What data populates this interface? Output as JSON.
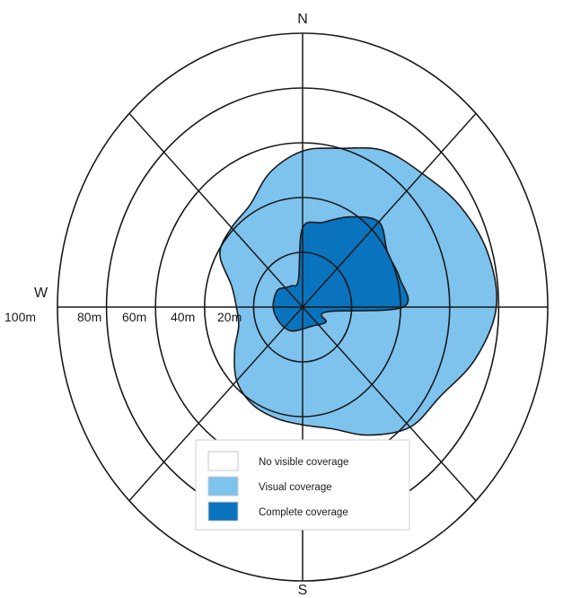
{
  "chart_data": {
    "type": "polar-area",
    "directions": {
      "north": "N",
      "west": "W",
      "south": "S",
      "east": ""
    },
    "radial_ticks": [
      "100m",
      "80m",
      "60m",
      "40m",
      "20m"
    ],
    "radial_tick_values": [
      100,
      80,
      60,
      40,
      20
    ],
    "radial_max": 100,
    "rings": [
      20,
      40,
      60,
      80,
      100
    ],
    "spokes_degrees": [
      0,
      45,
      90,
      135,
      180,
      225,
      270,
      315
    ],
    "series": [
      {
        "name": "Visual coverage",
        "color": "#7dc3ee",
        "points": [
          [
            0,
            57
          ],
          [
            15,
            60
          ],
          [
            30,
            66
          ],
          [
            45,
            69
          ],
          [
            60,
            74
          ],
          [
            75,
            78
          ],
          [
            90,
            79
          ],
          [
            105,
            73
          ],
          [
            120,
            65
          ],
          [
            135,
            62
          ],
          [
            150,
            54
          ],
          [
            165,
            46
          ],
          [
            180,
            43
          ],
          [
            195,
            42
          ],
          [
            210,
            41
          ],
          [
            225,
            38
          ],
          [
            240,
            32
          ],
          [
            255,
            27
          ],
          [
            270,
            27
          ],
          [
            285,
            30
          ],
          [
            300,
            39
          ],
          [
            315,
            41
          ],
          [
            330,
            43
          ],
          [
            345,
            51
          ]
        ]
      },
      {
        "name": "Complete coverage",
        "color": "#0a73bd",
        "points": [
          [
            0,
            29
          ],
          [
            15,
            32
          ],
          [
            30,
            38
          ],
          [
            45,
            44
          ],
          [
            60,
            40
          ],
          [
            75,
            41
          ],
          [
            90,
            41
          ],
          [
            100,
            10
          ],
          [
            120,
            11
          ],
          [
            150,
            8
          ],
          [
            180,
            8
          ],
          [
            210,
            10
          ],
          [
            240,
            11
          ],
          [
            270,
            12
          ],
          [
            300,
            12
          ],
          [
            315,
            10
          ],
          [
            330,
            9
          ],
          [
            350,
            10
          ]
        ]
      }
    ],
    "legend": {
      "placement": "bottom-center",
      "items": [
        {
          "label": "No visible coverage",
          "color": "#ffffff"
        },
        {
          "label": "Visual coverage",
          "color": "#7dc3ee"
        },
        {
          "label": "Complete coverage",
          "color": "#0a73bd"
        }
      ]
    }
  }
}
